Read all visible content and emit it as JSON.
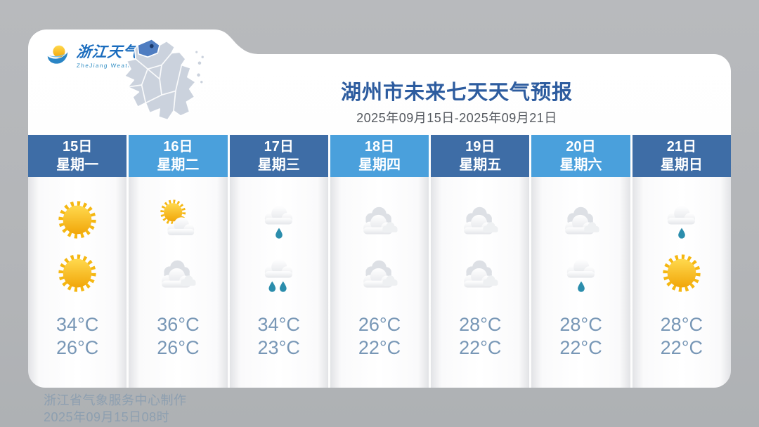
{
  "logo": {
    "title": "浙江天气",
    "subtitle": "ZheJiang  Weather",
    "map_region": "浙江",
    "highlighted_city": "湖州"
  },
  "header": {
    "title": "湖州市未来七天天气预报",
    "date_range": "2025年09月15日-2025年09月21日"
  },
  "forecast": {
    "days": [
      {
        "date": "15日",
        "week": "星期一",
        "shade": "dark",
        "am_icon": "sunny",
        "pm_icon": "sunny",
        "high": "34°C",
        "low": "26°C"
      },
      {
        "date": "16日",
        "week": "星期二",
        "shade": "light",
        "am_icon": "partly-cloudy",
        "pm_icon": "cloudy",
        "high": "36°C",
        "low": "26°C"
      },
      {
        "date": "17日",
        "week": "星期三",
        "shade": "dark",
        "am_icon": "light-rain",
        "pm_icon": "moderate-rain",
        "high": "34°C",
        "low": "23°C"
      },
      {
        "date": "18日",
        "week": "星期四",
        "shade": "light",
        "am_icon": "cloudy",
        "pm_icon": "cloudy",
        "high": "26°C",
        "low": "22°C"
      },
      {
        "date": "19日",
        "week": "星期五",
        "shade": "dark",
        "am_icon": "cloudy",
        "pm_icon": "cloudy",
        "high": "28°C",
        "low": "22°C"
      },
      {
        "date": "20日",
        "week": "星期六",
        "shade": "light",
        "am_icon": "cloudy",
        "pm_icon": "light-rain",
        "high": "28°C",
        "low": "22°C"
      },
      {
        "date": "21日",
        "week": "星期日",
        "shade": "dark",
        "am_icon": "light-rain",
        "pm_icon": "sunny",
        "high": "28°C",
        "low": "22°C"
      }
    ]
  },
  "footer": {
    "line1": "浙江省气象服务中心制作",
    "line2": "2025年09月15日08时"
  },
  "colors": {
    "background": "#b8babd",
    "header_dark": "#3e6da6",
    "header_light": "#4aa0dc",
    "title_text": "#2d5c9f",
    "temp_text": "#7897b6",
    "footer_text": "#8d9fb0",
    "sun": "#f5b711",
    "rain_drop": "#2b8dac",
    "map_fill": "#cbd2dd",
    "map_highlight": "#4f7dc1"
  }
}
